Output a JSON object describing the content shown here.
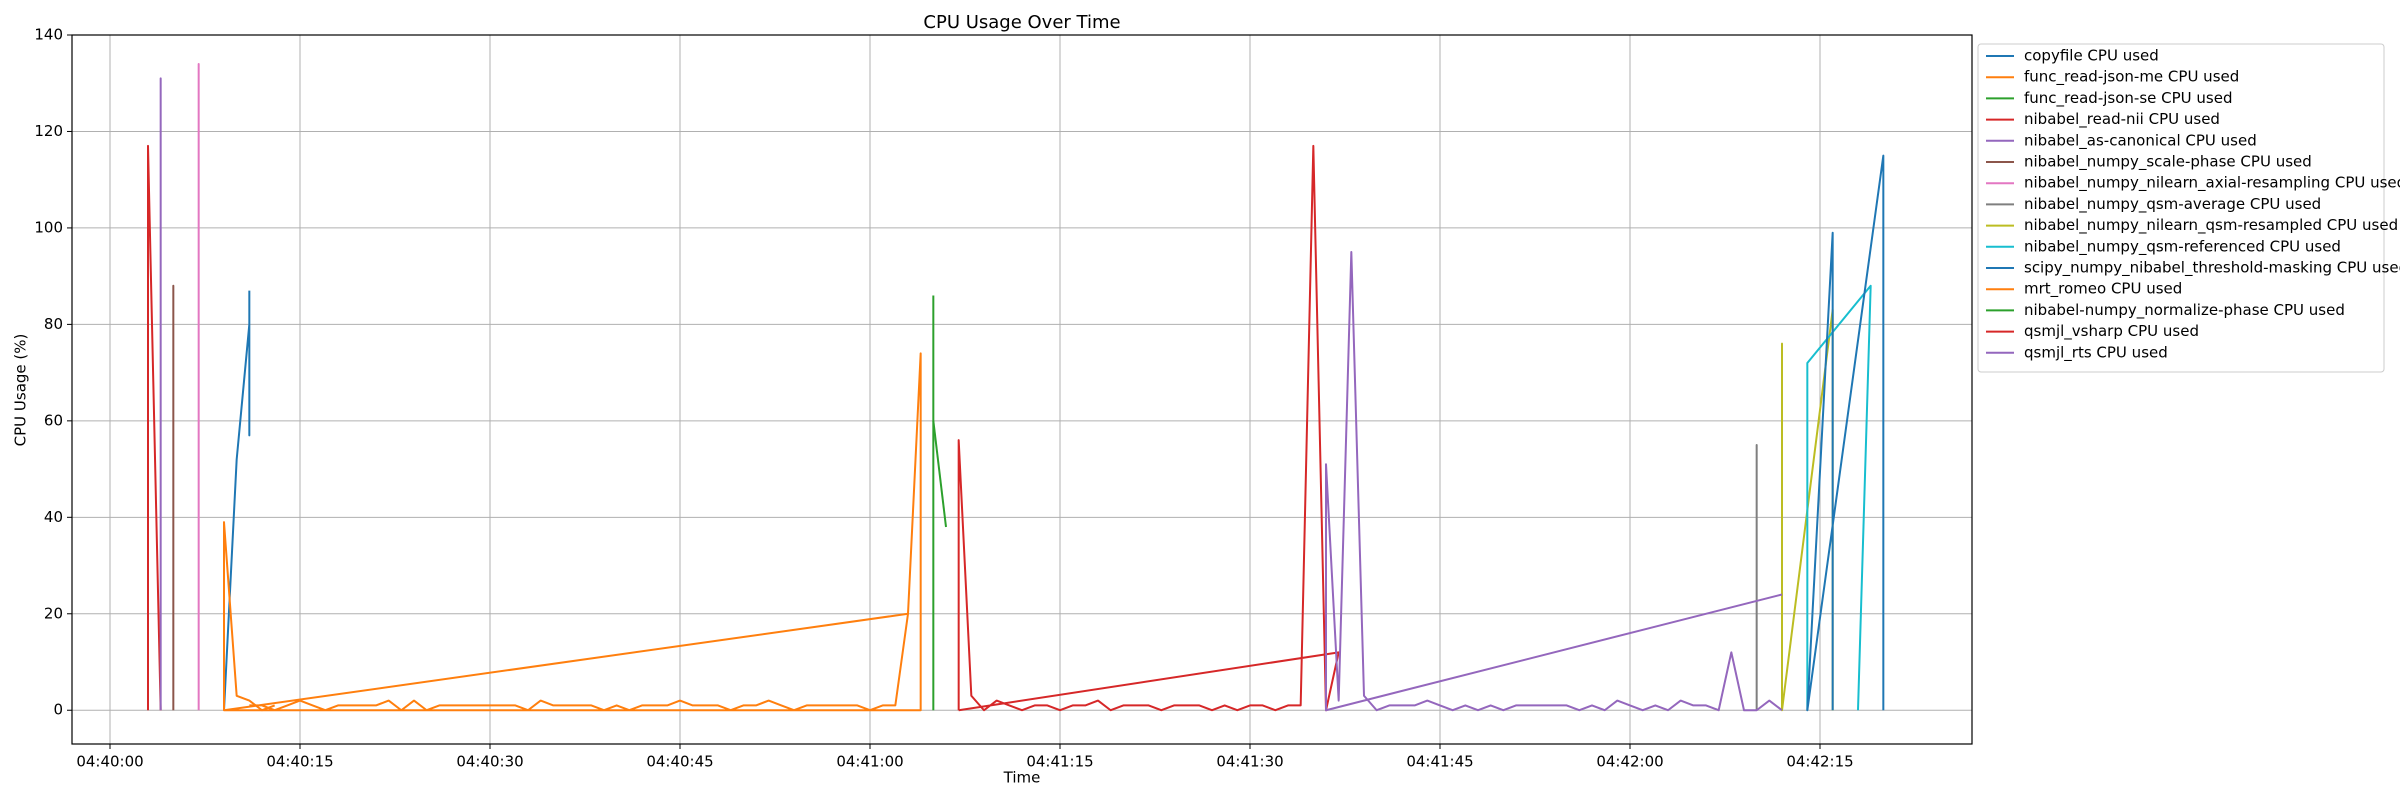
{
  "chart_data": {
    "type": "line",
    "title": "CPU Usage Over Time",
    "xlabel": "Time",
    "ylabel": "CPU Usage (%)",
    "xlim": [
      "04:39:57",
      "04:42:27"
    ],
    "xticks": [
      "04:40:00",
      "04:40:15",
      "04:40:30",
      "04:40:45",
      "04:41:00",
      "04:41:15",
      "04:41:30",
      "04:41:45",
      "04:42:00",
      "04:42:15"
    ],
    "ylim": [
      -7,
      140
    ],
    "yticks": [
      0,
      20,
      40,
      60,
      80,
      100,
      120,
      140
    ],
    "grid": true,
    "legend": "outside-right",
    "series": [
      {
        "name": "copyfile CPU used",
        "color": "#1f77b4",
        "x": [
          "04:40:09",
          "04:40:10",
          "04:40:11",
          "04:40:11",
          "04:40:11"
        ],
        "values": [
          0,
          52,
          80,
          57,
          87
        ]
      },
      {
        "name": "func_read-json-me CPU used",
        "color": "#ff7f0e",
        "x": [
          "04:40:09",
          "04:40:09",
          "04:40:10",
          "04:40:11",
          "04:40:12",
          "04:40:13"
        ],
        "values": [
          0,
          39,
          3,
          2,
          0,
          1
        ]
      },
      {
        "name": "func_read-json-se CPU used",
        "color": "#2ca02c",
        "x": [
          "04:41:05",
          "04:41:05"
        ],
        "values": [
          0,
          86
        ]
      },
      {
        "name": "nibabel_read-nii CPU used",
        "color": "#d62728",
        "x": [
          "04:40:03",
          "04:40:03",
          "04:40:04"
        ],
        "values": [
          0,
          117,
          0
        ]
      },
      {
        "name": "nibabel_as-canonical CPU used",
        "color": "#9467bd",
        "x": [
          "04:40:04",
          "04:40:04",
          "04:40:04"
        ],
        "values": [
          0,
          131,
          0
        ]
      },
      {
        "name": "nibabel_numpy_scale-phase CPU used",
        "color": "#8c564b",
        "x": [
          "04:40:05",
          "04:40:05",
          "04:40:05",
          "04:40:05"
        ],
        "values": [
          0,
          88,
          40,
          75
        ]
      },
      {
        "name": "nibabel_numpy_nilearn_axial-resampling CPU used",
        "color": "#e377c2",
        "x": [
          "04:40:07",
          "04:40:07",
          "04:40:07"
        ],
        "values": [
          0,
          134,
          46
        ]
      },
      {
        "name": "nibabel_numpy_qsm-average CPU used",
        "color": "#7f7f7f",
        "x": [
          "04:42:10",
          "04:42:10",
          "04:42:10"
        ],
        "values": [
          0,
          55,
          38
        ]
      },
      {
        "name": "nibabel_numpy_nilearn_qsm-resampled CPU used",
        "color": "#bcbd22",
        "x": [
          "04:42:12",
          "04:42:12",
          "04:42:12",
          "04:42:16",
          "04:42:16"
        ],
        "values": [
          0,
          76,
          0,
          83,
          0
        ]
      },
      {
        "name": "nibabel_numpy_qsm-referenced CPU used",
        "color": "#17becf",
        "x": [
          "04:42:14",
          "04:42:14",
          "04:42:14",
          "04:42:19",
          "04:42:18"
        ],
        "values": [
          0,
          62,
          72,
          88,
          0
        ]
      },
      {
        "name": "scipy_numpy_nibabel_threshold-masking CPU used",
        "color": "#1f77b4",
        "x": [
          "04:42:16",
          "04:42:16",
          "04:42:14",
          "04:42:20",
          "04:42:20"
        ],
        "values": [
          0,
          99,
          0,
          115,
          0
        ]
      },
      {
        "name": "mrt_romeo CPU used",
        "color": "#ff7f0e",
        "x": [
          "04:40:11",
          "04:40:12",
          "04:40:13",
          "04:40:14",
          "04:40:15",
          "04:40:16",
          "04:40:17",
          "04:40:18",
          "04:40:19",
          "04:40:20",
          "04:40:21",
          "04:40:22",
          "04:40:23",
          "04:40:24",
          "04:40:25",
          "04:40:26",
          "04:40:27",
          "04:40:28",
          "04:40:29",
          "04:40:30",
          "04:40:31",
          "04:40:32",
          "04:40:33",
          "04:40:34",
          "04:40:35",
          "04:40:36",
          "04:40:37",
          "04:40:38",
          "04:40:39",
          "04:40:40",
          "04:40:41",
          "04:40:42",
          "04:40:43",
          "04:40:44",
          "04:40:45",
          "04:40:46",
          "04:40:47",
          "04:40:48",
          "04:40:49",
          "04:40:50",
          "04:40:51",
          "04:40:52",
          "04:40:53",
          "04:40:54",
          "04:40:55",
          "04:40:56",
          "04:40:57",
          "04:40:58",
          "04:40:59",
          "04:41:00",
          "04:41:01",
          "04:41:02",
          "04:41:03",
          "04:41:04",
          "04:41:04",
          "04:40:09",
          "04:41:03"
        ],
        "values": [
          1,
          1,
          0,
          1,
          2,
          1,
          0,
          1,
          1,
          1,
          1,
          2,
          0,
          2,
          0,
          1,
          1,
          1,
          1,
          1,
          1,
          1,
          0,
          2,
          1,
          1,
          1,
          1,
          0,
          1,
          0,
          1,
          1,
          1,
          2,
          1,
          1,
          1,
          0,
          1,
          1,
          2,
          1,
          0,
          1,
          1,
          1,
          1,
          1,
          0,
          1,
          1,
          20,
          74,
          0,
          0,
          20
        ]
      },
      {
        "name": "nibabel-numpy_normalize-phase CPU used",
        "color": "#2ca02c",
        "x": [
          "04:41:05",
          "04:41:06"
        ],
        "values": [
          60,
          38
        ]
      },
      {
        "name": "qsmjl_vsharp CPU used",
        "color": "#d62728",
        "x": [
          "04:41:07",
          "04:41:07",
          "04:41:08",
          "04:41:09",
          "04:41:10",
          "04:41:11",
          "04:41:12",
          "04:41:13",
          "04:41:14",
          "04:41:15",
          "04:41:16",
          "04:41:17",
          "04:41:18",
          "04:41:19",
          "04:41:20",
          "04:41:21",
          "04:41:22",
          "04:41:23",
          "04:41:24",
          "04:41:25",
          "04:41:26",
          "04:41:27",
          "04:41:28",
          "04:41:29",
          "04:41:30",
          "04:41:31",
          "04:41:32",
          "04:41:33",
          "04:41:34",
          "04:41:35",
          "04:41:36",
          "04:41:37",
          "04:41:07"
        ],
        "values": [
          0,
          56,
          3,
          0,
          2,
          1,
          0,
          1,
          1,
          0,
          1,
          1,
          2,
          0,
          1,
          1,
          1,
          0,
          1,
          1,
          1,
          0,
          1,
          0,
          1,
          1,
          0,
          1,
          1,
          117,
          0,
          12,
          0
        ]
      },
      {
        "name": "qsmjl_rts CPU used",
        "color": "#9467bd",
        "x": [
          "04:42:12",
          "04:41:36",
          "04:41:36",
          "04:41:37",
          "04:41:38",
          "04:41:39",
          "04:41:40",
          "04:41:41",
          "04:41:42",
          "04:41:43",
          "04:41:44",
          "04:41:45",
          "04:41:46",
          "04:41:47",
          "04:41:48",
          "04:41:49",
          "04:41:50",
          "04:41:51",
          "04:41:52",
          "04:41:53",
          "04:41:54",
          "04:41:55",
          "04:41:56",
          "04:41:57",
          "04:41:58",
          "04:41:59",
          "04:42:00",
          "04:42:01",
          "04:42:02",
          "04:42:03",
          "04:42:04",
          "04:42:05",
          "04:42:06",
          "04:42:07",
          "04:42:08",
          "04:42:09",
          "04:42:10",
          "04:42:11",
          "04:42:12"
        ],
        "values": [
          24,
          0,
          51,
          2,
          95,
          3,
          0,
          1,
          1,
          1,
          2,
          1,
          0,
          1,
          0,
          1,
          0,
          1,
          1,
          1,
          1,
          1,
          0,
          1,
          0,
          2,
          1,
          0,
          1,
          0,
          2,
          1,
          1,
          0,
          12,
          0,
          0,
          2,
          0
        ]
      }
    ]
  }
}
